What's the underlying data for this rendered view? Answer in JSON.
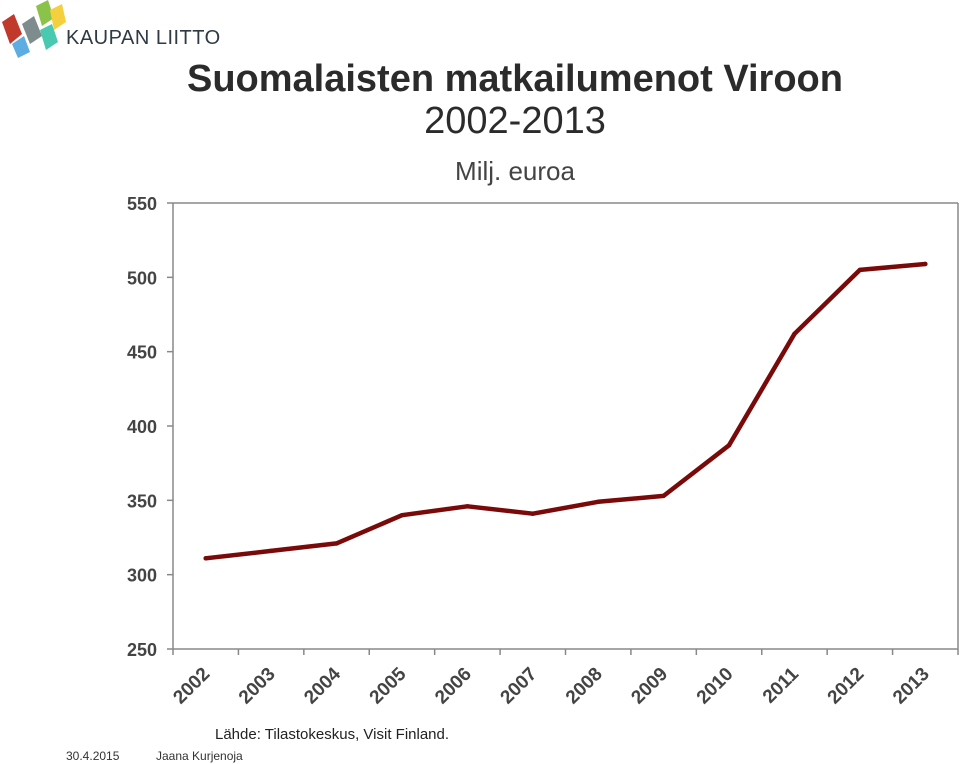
{
  "logo": {
    "text": "KAUPAN LIITTO"
  },
  "chart_data": {
    "type": "line",
    "title": "Suomalaisten matkailumenot Viroon",
    "subtitle": "2002-2013",
    "unit": "Milj. euroa",
    "categories": [
      "2002",
      "2003",
      "2004",
      "2005",
      "2006",
      "2007",
      "2008",
      "2009",
      "2010",
      "2011",
      "2012",
      "2013"
    ],
    "values": [
      311,
      316,
      321,
      340,
      346,
      341,
      349,
      353,
      387,
      462,
      505,
      509
    ],
    "ylim": [
      250,
      550
    ],
    "yticks": [
      250,
      300,
      350,
      400,
      450,
      500,
      550
    ],
    "line_color": "#7a0a0a",
    "grid": false,
    "legend": "none"
  },
  "source": "Lähde: Tilastokeskus, Visit Finland.",
  "footer": {
    "date": "30.4.2015",
    "author": "Jaana Kurjenoja"
  }
}
